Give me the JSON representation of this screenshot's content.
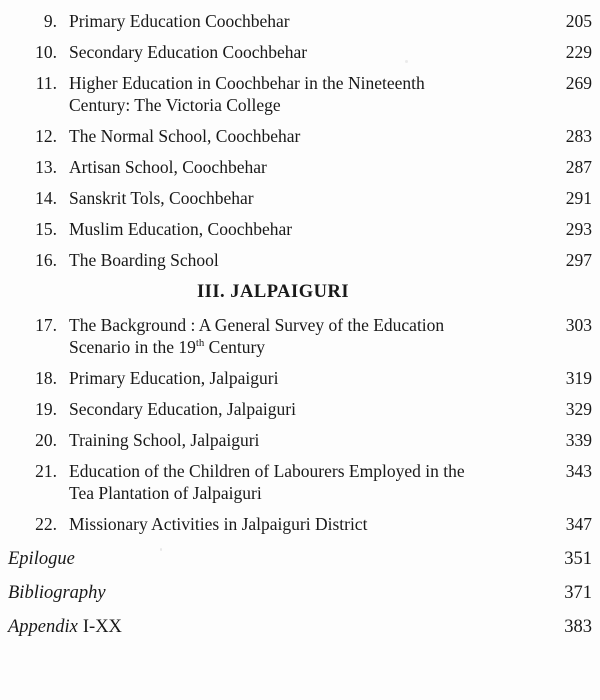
{
  "toc": {
    "section_heading": "III. JALPAIGURI",
    "entries": [
      {
        "num": "9.",
        "title": "Primary Education Coochbehar",
        "page": "205"
      },
      {
        "num": "10.",
        "title": "Secondary Education Coochbehar",
        "page": "229"
      },
      {
        "num": "11.",
        "title": "Higher Education in Coochbehar in the Nineteenth\nCentury: The Victoria College",
        "page": "269"
      },
      {
        "num": "12.",
        "title": "The Normal School, Coochbehar",
        "page": "283"
      },
      {
        "num": "13.",
        "title": "Artisan School, Coochbehar",
        "page": "287"
      },
      {
        "num": "14.",
        "title": "Sanskrit Tols, Coochbehar",
        "page": "291"
      },
      {
        "num": "15.",
        "title": "Muslim Education, Coochbehar",
        "page": "293"
      },
      {
        "num": "16.",
        "title": "The Boarding School",
        "page": "297"
      }
    ],
    "entries_jalpaiguri": [
      {
        "num": "17.",
        "title_pre": "The Background : A General Survey of the Education\nScenario in the 19",
        "title_sup": "th",
        "title_post": " Century",
        "page": "303"
      },
      {
        "num": "18.",
        "title": "Primary Education, Jalpaiguri",
        "page": "319"
      },
      {
        "num": "19.",
        "title": "Secondary Education, Jalpaiguri",
        "page": "329"
      },
      {
        "num": "20.",
        "title": "Training School, Jalpaiguri",
        "page": "339"
      },
      {
        "num": "21.",
        "title": "Education of the Children of Labourers Employed in the\nTea Plantation of Jalpaiguri",
        "page": "343"
      },
      {
        "num": "22.",
        "title": "Missionary Activities in Jalpaiguri District",
        "page": "347"
      }
    ],
    "back_matter": [
      {
        "title": "Epilogue",
        "suffix": "",
        "page": "351"
      },
      {
        "title": "Bibliography",
        "suffix": "",
        "page": "371"
      },
      {
        "title": "Appendix",
        "suffix": "I-XX",
        "page": "383"
      }
    ]
  }
}
